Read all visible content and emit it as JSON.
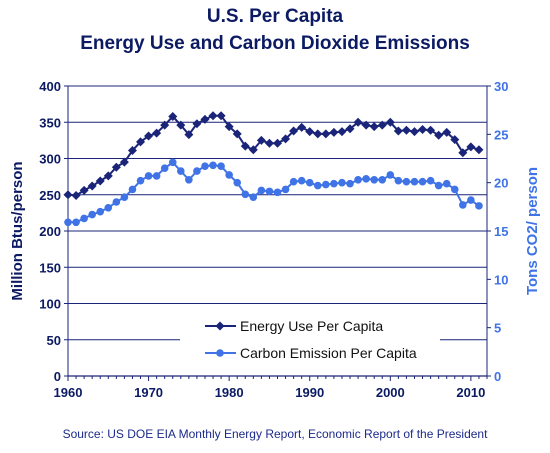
{
  "title_lines": [
    "U.S. Per Capita",
    "Energy Use and Carbon Dioxide Emissions"
  ],
  "source": "Source: US DOE EIA Monthly Energy Report, Economic Report of the President",
  "colors": {
    "title": "#0b1a63",
    "energy_series": "#1a2478",
    "carbon_series": "#3f73e6",
    "left_axis_text": "#0b1a63",
    "right_axis_text": "#3f73e6",
    "grid": "#1a2478"
  },
  "chart_data": {
    "type": "line",
    "title": "U.S. Per Capita Energy Use and Carbon Dioxide Emissions",
    "xlabel": "",
    "ylabel": "Million Btus/person",
    "y2label": "Tons CO2/ person",
    "xlim": [
      1960,
      2012
    ],
    "ylim": [
      0,
      400
    ],
    "y2lim": [
      0,
      30
    ],
    "x_ticks": [
      1960,
      1970,
      1980,
      1990,
      2000,
      2010
    ],
    "y_ticks": [
      0,
      50,
      100,
      150,
      200,
      250,
      300,
      350,
      400
    ],
    "y2_ticks": [
      0,
      5,
      10,
      15,
      20,
      25,
      30
    ],
    "grid": "horizontal",
    "legend_position": "lower-middle",
    "x": [
      1960,
      1961,
      1962,
      1963,
      1964,
      1965,
      1966,
      1967,
      1968,
      1969,
      1970,
      1971,
      1972,
      1973,
      1974,
      1975,
      1976,
      1977,
      1978,
      1979,
      1980,
      1981,
      1982,
      1983,
      1984,
      1985,
      1986,
      1987,
      1988,
      1989,
      1990,
      1991,
      1992,
      1993,
      1994,
      1995,
      1996,
      1997,
      1998,
      1999,
      2000,
      2001,
      2002,
      2003,
      2004,
      2005,
      2006,
      2007,
      2008,
      2009,
      2010,
      2011
    ],
    "series": [
      {
        "name": "Energy Use Per Capita",
        "axis": "left",
        "marker": "diamond",
        "values": [
          250,
          249,
          256,
          262,
          269,
          276,
          288,
          295,
          311,
          323,
          331,
          335,
          346,
          358,
          346,
          333,
          348,
          354,
          359,
          359,
          344,
          334,
          317,
          312,
          325,
          321,
          321,
          327,
          338,
          343,
          337,
          334,
          334,
          336,
          337,
          341,
          350,
          346,
          344,
          346,
          350,
          338,
          339,
          337,
          340,
          339,
          332,
          336,
          326,
          308,
          316,
          312
        ]
      },
      {
        "name": "Carbon Emission Per Capita",
        "axis": "right",
        "marker": "circle",
        "values": [
          15.9,
          15.9,
          16.3,
          16.7,
          17.0,
          17.4,
          18.0,
          18.5,
          19.3,
          20.2,
          20.7,
          20.7,
          21.5,
          22.1,
          21.2,
          20.3,
          21.2,
          21.7,
          21.8,
          21.7,
          20.8,
          20.0,
          18.8,
          18.5,
          19.2,
          19.1,
          19.0,
          19.3,
          20.1,
          20.2,
          20.0,
          19.7,
          19.8,
          19.9,
          20.0,
          19.9,
          20.3,
          20.4,
          20.3,
          20.3,
          20.8,
          20.2,
          20.1,
          20.1,
          20.1,
          20.2,
          19.7,
          19.9,
          19.3,
          17.7,
          18.2,
          17.6
        ]
      }
    ]
  }
}
